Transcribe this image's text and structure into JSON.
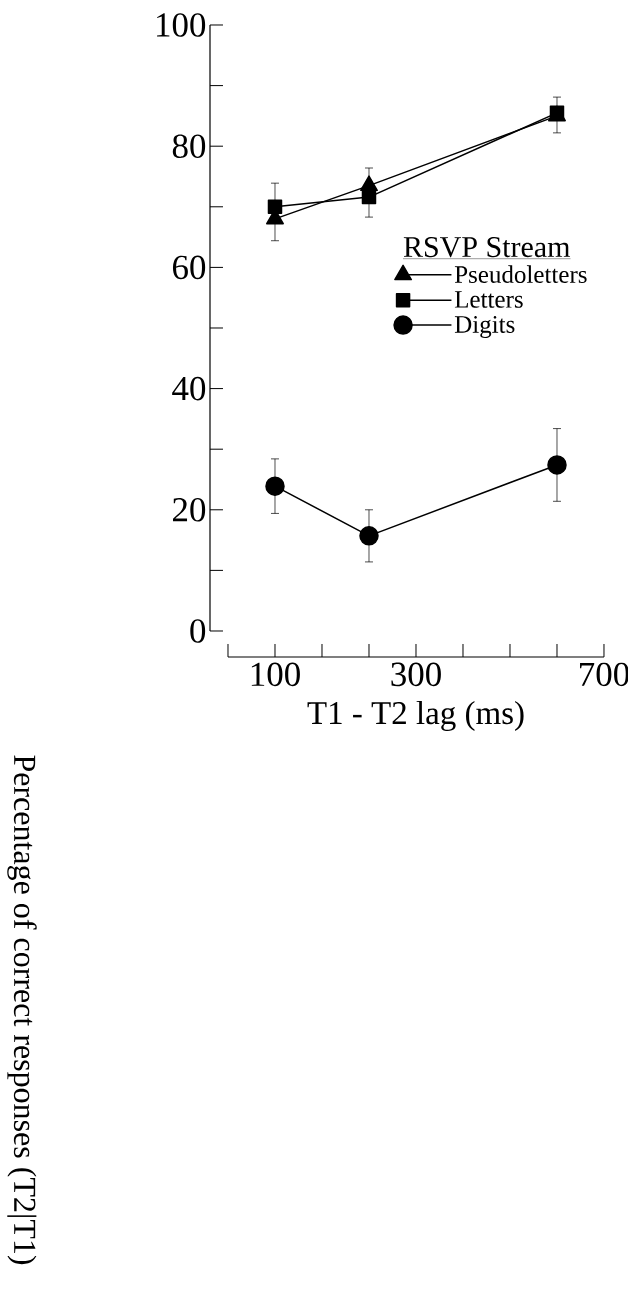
{
  "chart_data": {
    "type": "line",
    "xlabel": "T1 - T2 lag (ms)",
    "ylabel": "Percentage of correct responses (T2|T1)",
    "legend_title": "RSVP Stream",
    "legend": "right",
    "line_style": "solid",
    "grid": false,
    "categories": [
      null,
      "100",
      null,
      null,
      "300",
      null,
      null,
      null,
      "700"
    ],
    "ylim": [
      0,
      100
    ],
    "yticks": [
      0,
      {
        "value": 10,
        "label": null
      },
      20,
      {
        "value": 30,
        "label": null
      },
      40,
      {
        "value": 50,
        "label": null
      },
      60,
      {
        "value": 70,
        "label": null
      },
      80,
      {
        "value": 90,
        "label": null
      },
      100
    ],
    "series": [
      {
        "name": "Pseudoletters",
        "color": "#000000",
        "marker": "triangle",
        "values": [
          null,
          68,
          null,
          73.5,
          null,
          null,
          null,
          85,
          null
        ],
        "errors": [
          null,
          [
            64.4,
            68
          ],
          null,
          [
            73.5,
            76.4
          ],
          null,
          null,
          null,
          [
            82.2,
            85
          ],
          null
        ]
      },
      {
        "name": "Letters",
        "color": "#000000",
        "marker": "square",
        "values": [
          null,
          70,
          null,
          71.6,
          null,
          null,
          null,
          85.5,
          null
        ],
        "errors": [
          null,
          [
            70,
            73.9
          ],
          null,
          [
            68.3,
            71.6
          ],
          null,
          null,
          null,
          [
            85.5,
            88.1
          ],
          null
        ]
      },
      {
        "name": "Digits",
        "color": "#000000",
        "marker": "circle",
        "values": [
          null,
          23.9,
          null,
          15.7,
          null,
          null,
          null,
          27.4,
          null
        ],
        "errors": [
          null,
          4.5,
          null,
          4.3,
          null,
          null,
          null,
          6,
          null
        ]
      }
    ]
  }
}
